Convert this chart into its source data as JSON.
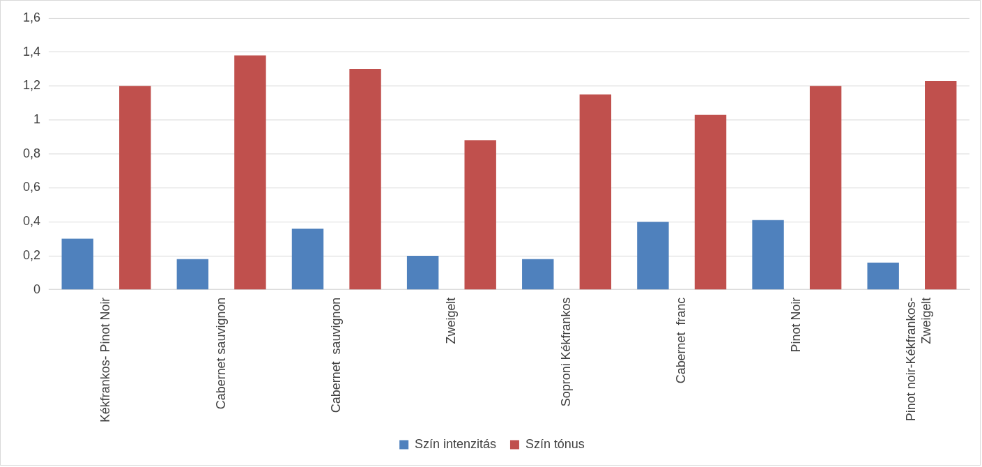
{
  "chart_data": {
    "type": "bar",
    "categories": [
      "Kékfrankos- Pinot Noir",
      "Cabernet sauvignon",
      "Cabernet  sauvignon",
      "Zweigelt",
      "Soproni Kékfrankos",
      "Cabernet  franc",
      "Pinot Noir",
      "Pinot noir-Kékfrankos-Zweigelt"
    ],
    "series": [
      {
        "name": "Szín intenzitás",
        "color": "#4f81bd",
        "values": [
          0.3,
          0.18,
          0.36,
          0.2,
          0.18,
          0.4,
          0.41,
          0.16
        ]
      },
      {
        "name": "Szín tónus",
        "color": "#c0504d",
        "values": [
          1.2,
          1.38,
          1.3,
          0.88,
          1.15,
          1.03,
          1.2,
          1.23
        ]
      }
    ],
    "ylim": [
      0,
      1.6
    ],
    "yticks": [
      0,
      {
        "value": 0.2,
        "label": "0,2"
      },
      {
        "value": 0.4,
        "label": "0,4"
      },
      {
        "value": 0.6,
        "label": "0,6"
      },
      {
        "value": 0.8,
        "label": "0,8"
      },
      1,
      {
        "value": 1.2,
        "label": "1,2"
      },
      {
        "value": 1.4,
        "label": "1,4"
      },
      {
        "value": 1.6,
        "label": "1,6"
      }
    ],
    "grid": "y",
    "legend": "bottom"
  }
}
